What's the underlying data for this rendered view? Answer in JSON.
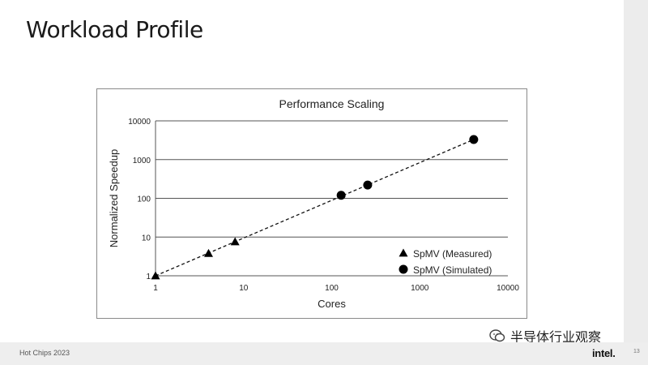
{
  "slide": {
    "title": "Workload Profile",
    "footer_text": "Hot Chips 2023",
    "page_number": "13",
    "brand_logo_text": "intel.",
    "watermark_text": "半导体行业观察"
  },
  "chart_data": {
    "type": "scatter",
    "title": "Performance Scaling",
    "xlabel": "Cores",
    "ylabel": "Normalized Speedup",
    "x_scale": "log",
    "y_scale": "log",
    "xlim": [
      1,
      10000
    ],
    "ylim": [
      1,
      10000
    ],
    "x_ticks": [
      "1",
      "10",
      "100",
      "1000",
      "10000"
    ],
    "y_ticks": [
      "1",
      "10",
      "100",
      "1000",
      "10000"
    ],
    "grid": "horizontal",
    "legend_position": "bottom-right",
    "series": [
      {
        "name": "SpMV (Measured)",
        "marker": "triangle",
        "color": "#000000",
        "points": [
          [
            1,
            1
          ],
          [
            4,
            3.8
          ],
          [
            8,
            7.6
          ]
        ]
      },
      {
        "name": "SpMV (Simulated)",
        "marker": "circle",
        "color": "#000000",
        "points": [
          [
            128,
            120
          ],
          [
            256,
            220
          ],
          [
            4096,
            3300
          ]
        ]
      }
    ],
    "trendline": {
      "style": "dashed",
      "from": [
        1,
        1
      ],
      "to": [
        4096,
        3300
      ]
    }
  }
}
